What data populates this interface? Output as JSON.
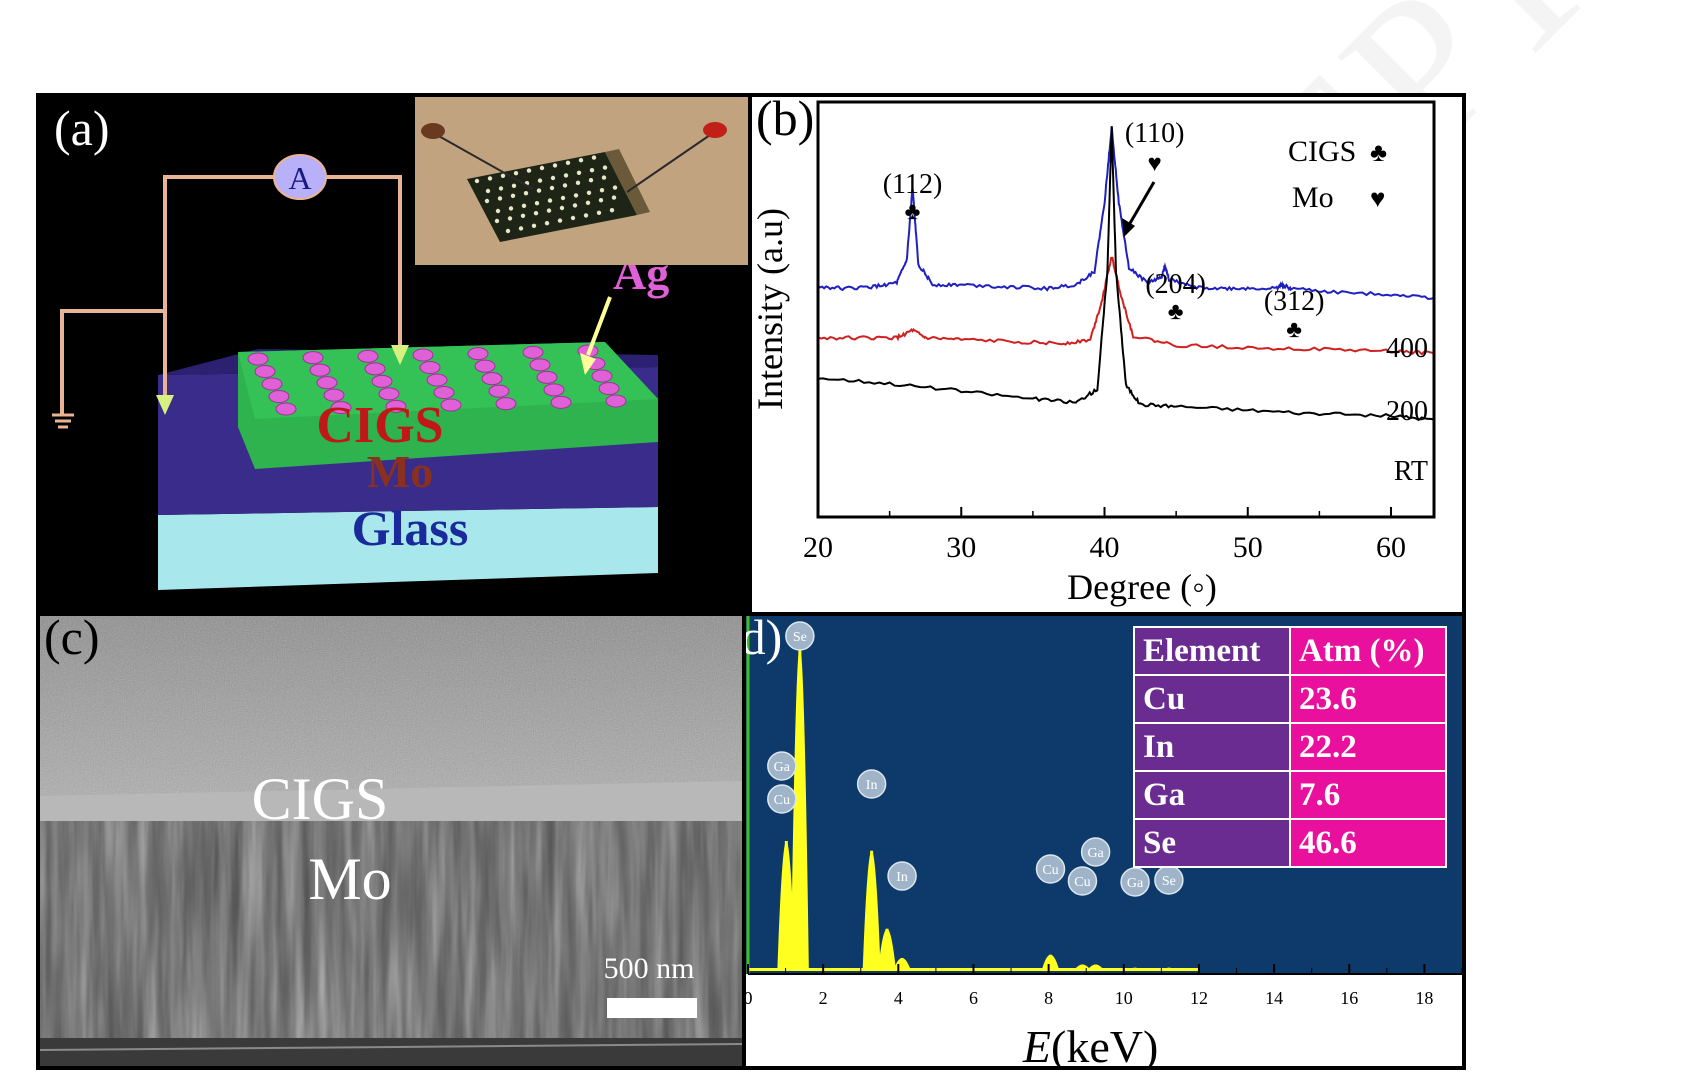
{
  "panel_a": {
    "label": "(a)",
    "ammeter": "A",
    "layers": {
      "top": "CIGS",
      "middle": "Mo",
      "bottom": "Glass"
    },
    "contact": "Ag",
    "colors": {
      "cigs": "#2eb34e",
      "mo": "#3a2c8a",
      "glass": "#a8e8ec",
      "ag": "#e060d8",
      "wire": "#e8b494"
    }
  },
  "panel_b": {
    "label": "(b)",
    "legend": [
      {
        "name": "CIGS",
        "symbol": "♣"
      },
      {
        "name": "Mo",
        "symbol": "♥"
      }
    ],
    "peaks": [
      {
        "label": "(112)",
        "symbol": "♣",
        "x": 26.6
      },
      {
        "label": "(110)",
        "symbol": "♥",
        "x": 40.5
      },
      {
        "label": "(204)",
        "symbol": "♣",
        "x": 44.2
      },
      {
        "label": "(312)",
        "symbol": "♣",
        "x": 52.4
      }
    ]
  },
  "chart_data": {
    "type": "line",
    "title": "",
    "xlabel": "Degree (◦)",
    "ylabel": "Intensity (a.u)",
    "xlim": [
      20,
      63
    ],
    "ylim": [
      0,
      100
    ],
    "xticks": [
      20,
      30,
      40,
      50,
      60
    ],
    "series": [
      {
        "name": "400",
        "color": "#2020c0",
        "x": [
          20,
          22,
          24,
          25.5,
          26.2,
          26.6,
          27.0,
          28,
          30,
          33,
          36,
          38,
          39.3,
          40,
          40.5,
          41,
          41.7,
          43,
          44,
          44.2,
          44.5,
          46,
          48,
          50,
          52,
          52.4,
          53,
          56,
          60,
          63
        ],
        "y": [
          58,
          57.5,
          58,
          59,
          65,
          84,
          64,
          58.5,
          58.5,
          58,
          57.5,
          58.5,
          62,
          80,
          100,
          80,
          63,
          59,
          60.5,
          63.5,
          60,
          58,
          57.5,
          57.5,
          57.5,
          58.5,
          57.5,
          56.5,
          56,
          55
        ]
      },
      {
        "name": "200",
        "color": "#d02020",
        "x": [
          20,
          23,
          25.5,
          26.6,
          27.5,
          30,
          34,
          37,
          39,
          39.8,
          40.5,
          41.2,
          42,
          45,
          50,
          55,
          60,
          63
        ],
        "y": [
          44.5,
          44.5,
          44.5,
          46.5,
          44.5,
          44,
          43.5,
          43,
          44,
          54,
          66,
          55,
          45,
          42.5,
          42,
          41.5,
          41,
          40.5
        ]
      },
      {
        "name": "RT",
        "color": "#000000",
        "x": [
          20,
          25,
          30,
          35,
          38,
          39.5,
          40.2,
          40.5,
          40.8,
          41.5,
          42.5,
          45,
          50,
          55,
          60,
          63
        ],
        "y": [
          34,
          32.5,
          30.5,
          28.5,
          27.5,
          31,
          62,
          100,
          62,
          32,
          27,
          26.5,
          25.5,
          24.5,
          24,
          23
        ]
      }
    ]
  },
  "panel_c": {
    "label": "(c)",
    "layer_top": "CIGS",
    "layer_bottom": "Mo",
    "scalebar": "500 nm"
  },
  "panel_d": {
    "label": "(d)",
    "table_headers": [
      "Element",
      "Atm (%)"
    ],
    "table_rows": [
      {
        "element": "Cu",
        "value": "23.6"
      },
      {
        "element": "In",
        "value": "22.2"
      },
      {
        "element": "Ga",
        "value": "7.6"
      },
      {
        "element": "Se",
        "value": "46.6"
      }
    ],
    "xlabel_var": "E",
    "xlabel_unit": " (keV)",
    "colors": {
      "background": "#0d3a6a",
      "spectrum": "#ffff20",
      "table_element": "#6a2c91",
      "table_value": "#e8109c"
    }
  },
  "edx_data": {
    "type": "area",
    "xlim": [
      0,
      19
    ],
    "xticks": [
      0,
      2,
      4,
      6,
      8,
      10,
      12,
      14,
      16,
      18
    ],
    "peaks": [
      {
        "x": 1.02,
        "height": 40,
        "labels": [
          "Cu",
          "Ga"
        ]
      },
      {
        "x": 1.38,
        "height": 100,
        "labels": [
          "Se"
        ]
      },
      {
        "x": 3.29,
        "height": 37,
        "labels": [
          "In"
        ]
      },
      {
        "x": 3.7,
        "height": 13,
        "labels": []
      },
      {
        "x": 4.1,
        "height": 4,
        "labels": [
          "In"
        ]
      },
      {
        "x": 8.05,
        "height": 5,
        "labels": [
          "Cu"
        ]
      },
      {
        "x": 8.9,
        "height": 2,
        "labels": [
          "Cu"
        ]
      },
      {
        "x": 9.25,
        "height": 2,
        "labels": [
          "Ga"
        ]
      },
      {
        "x": 10.3,
        "height": 1,
        "labels": [
          "Ga"
        ]
      },
      {
        "x": 11.2,
        "height": 1,
        "labels": [
          "Se"
        ]
      }
    ]
  },
  "watermark": "ACCEPTED MANUSCRIPT"
}
